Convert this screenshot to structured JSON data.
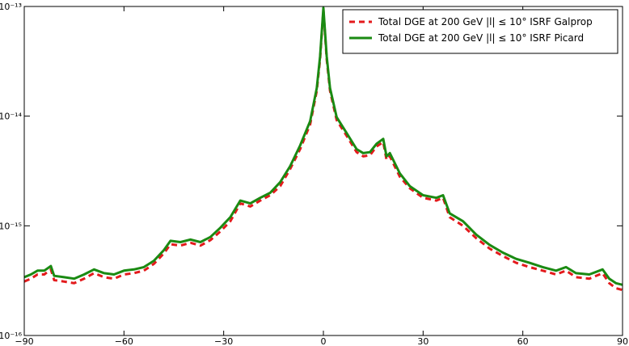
{
  "chart_data": {
    "type": "line",
    "yscale": "log",
    "legend_loc": "upper right",
    "xlim": [
      -90,
      90
    ],
    "xticks": [
      {
        "value": -90,
        "label": "−90"
      },
      {
        "value": -60,
        "label": "−60"
      },
      {
        "value": -30,
        "label": "−30"
      },
      0,
      30,
      60,
      90
    ],
    "ylim": [
      1e-16,
      1e-13
    ],
    "yticks": [
      {
        "value": 1e-16,
        "label": "10⁻¹⁶"
      },
      {
        "value": 1e-15,
        "label": "10⁻¹⁵"
      },
      {
        "value": 1e-14,
        "label": "10⁻¹⁴"
      },
      {
        "value": 1e-13,
        "label": "10⁻¹³"
      }
    ],
    "x": [
      -90,
      -88,
      -86,
      -84,
      -82,
      -81,
      -78,
      -75,
      -72,
      -69,
      -66,
      -63,
      -60,
      -57,
      -54,
      -51,
      -48,
      -46,
      -43,
      -40,
      -37,
      -34,
      -31,
      -28,
      -25,
      -22,
      -19,
      -16,
      -13,
      -10,
      -7,
      -4,
      -2,
      -1,
      0,
      1,
      2,
      4,
      7,
      10,
      12,
      14,
      16,
      18,
      19,
      20,
      23,
      26,
      30,
      34,
      36,
      38,
      42,
      46,
      50,
      54,
      58,
      62,
      66,
      70,
      73,
      76,
      80,
      84,
      86,
      88,
      90
    ],
    "series": [
      {
        "name": "Total DGE at 200 GeV |l| ≤ 10° ISRF Galprop",
        "color": "#e31a1c",
        "dash": true,
        "values": [
          3.1e-16,
          3.3e-16,
          3.6e-16,
          3.6e-16,
          4e-16,
          3.2e-16,
          3.1e-16,
          3e-16,
          3.3e-16,
          3.7e-16,
          3.4e-16,
          3.3e-16,
          3.6e-16,
          3.7e-16,
          3.9e-16,
          4.5e-16,
          5.6e-16,
          6.8e-16,
          6.6e-16,
          7e-16,
          6.6e-16,
          7.4e-16,
          8.9e-16,
          1.1e-15,
          1.6e-15,
          1.5e-15,
          1.7e-15,
          1.9e-15,
          2.3e-15,
          3.3e-15,
          5e-15,
          8.4e-15,
          1.7e-14,
          3.3e-14,
          9.3e-14,
          3.3e-14,
          1.7e-14,
          9.2e-15,
          6.6e-15,
          4.7e-15,
          4.3e-15,
          4.4e-15,
          5.3e-15,
          5.8e-15,
          4e-15,
          4.3e-15,
          2.8e-15,
          2.2e-15,
          1.8e-15,
          1.7e-15,
          1.8e-15,
          1.2e-15,
          1e-15,
          7.7e-16,
          6.2e-16,
          5.3e-16,
          4.6e-16,
          4.2e-16,
          3.9e-16,
          3.6e-16,
          3.9e-16,
          3.4e-16,
          3.3e-16,
          3.7e-16,
          3e-16,
          2.7e-16,
          2.6e-16
        ]
      },
      {
        "name": "Total DGE at 200 GeV |l| ≤ 10° ISRF Picard",
        "color": "#1a8a12",
        "dash": false,
        "values": [
          3.4e-16,
          3.6e-16,
          3.9e-16,
          3.9e-16,
          4.3e-16,
          3.5e-16,
          3.4e-16,
          3.3e-16,
          3.6e-16,
          4e-16,
          3.7e-16,
          3.6e-16,
          3.9e-16,
          4e-16,
          4.2e-16,
          4.8e-16,
          6e-16,
          7.3e-16,
          7.1e-16,
          7.5e-16,
          7.1e-16,
          7.9e-16,
          9.6e-16,
          1.2e-15,
          1.7e-15,
          1.6e-15,
          1.8e-15,
          2e-15,
          2.5e-15,
          3.5e-15,
          5.4e-15,
          9e-15,
          1.8e-14,
          3.5e-14,
          9.7e-14,
          3.5e-14,
          1.8e-14,
          9.8e-15,
          7e-15,
          5e-15,
          4.6e-15,
          4.7e-15,
          5.6e-15,
          6.2e-15,
          4.3e-15,
          4.6e-15,
          3e-15,
          2.3e-15,
          1.9e-15,
          1.8e-15,
          1.9e-15,
          1.3e-15,
          1.1e-15,
          8.3e-16,
          6.7e-16,
          5.7e-16,
          5e-16,
          4.6e-16,
          4.2e-16,
          3.9e-16,
          4.2e-16,
          3.7e-16,
          3.6e-16,
          4e-16,
          3.3e-16,
          3e-16,
          2.9e-16
        ]
      }
    ]
  }
}
